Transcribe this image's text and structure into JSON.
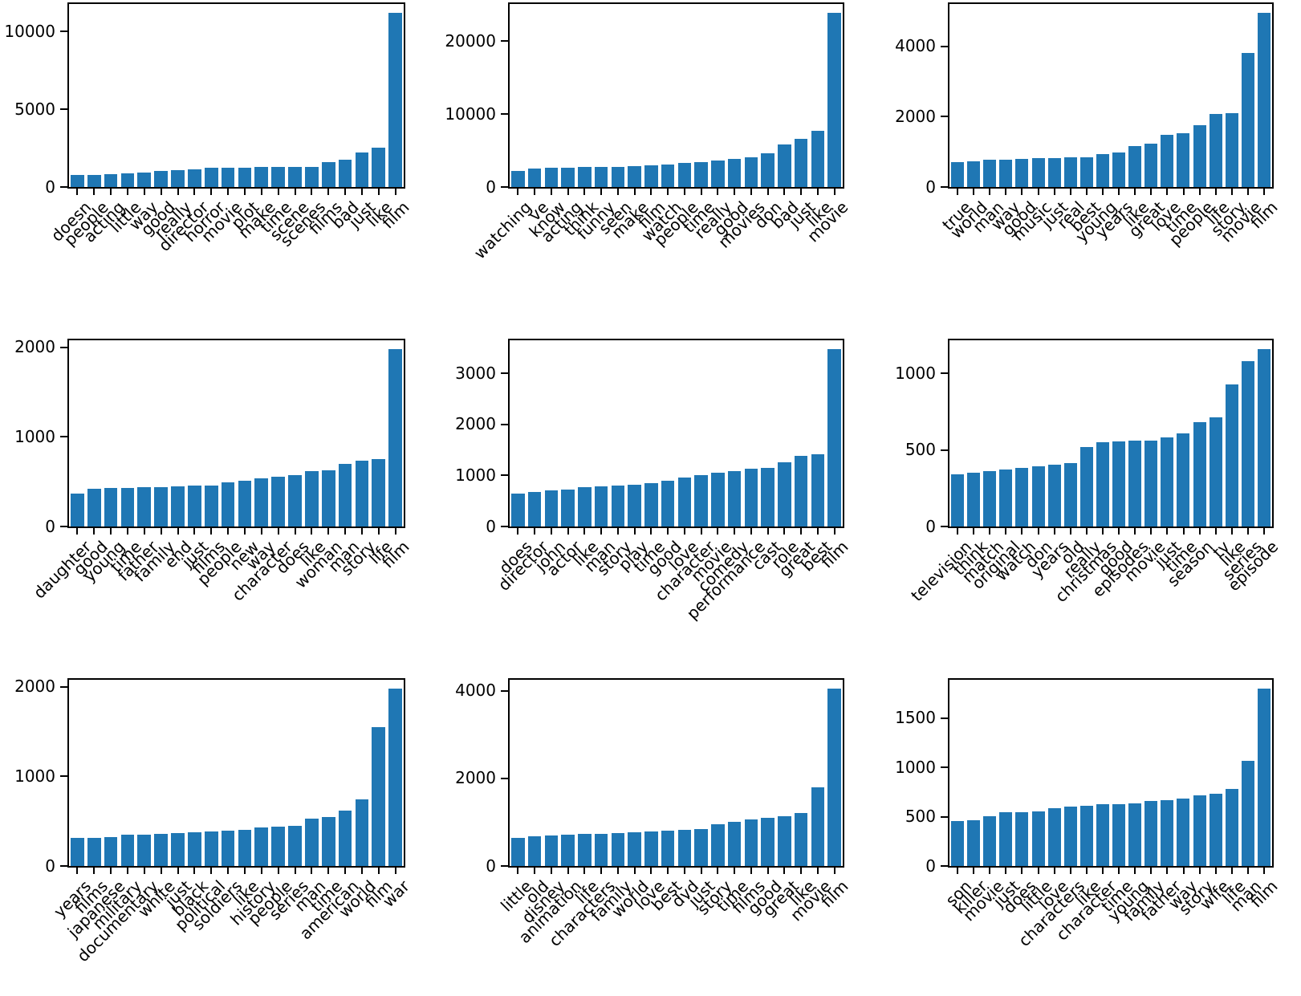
{
  "figure": {
    "background": "#ffffff",
    "bar_color": "#1f77b4",
    "spine_color": "#000000",
    "grid": {
      "rows": 3,
      "cols": 3
    }
  },
  "chart_data": [
    {
      "type": "bar",
      "position": "top-left",
      "title": "",
      "xlabel": "",
      "ylabel": "",
      "categories": [
        "doesn",
        "people",
        "acting",
        "little",
        "way",
        "good",
        "really",
        "director",
        "horror",
        "movie",
        "plot",
        "make",
        "time",
        "scene",
        "scenes",
        "films",
        "bad",
        "just",
        "like",
        "film"
      ],
      "values": [
        790,
        800,
        815,
        855,
        945,
        1040,
        1100,
        1160,
        1220,
        1240,
        1255,
        1265,
        1280,
        1295,
        1310,
        1600,
        1750,
        2200,
        2550,
        11200
      ],
      "yticks": [
        0,
        5000,
        10000
      ],
      "ylim": [
        0,
        11760
      ],
      "grid_lines": false
    },
    {
      "type": "bar",
      "position": "top-center",
      "title": "",
      "xlabel": "",
      "ylabel": "",
      "categories": [
        "watching",
        "ve",
        "know",
        "acting",
        "think",
        "funny",
        "seen",
        "make",
        "film",
        "watch",
        "people",
        "time",
        "really",
        "good",
        "movies",
        "don",
        "bad",
        "just",
        "like",
        "movie"
      ],
      "values": [
        2250,
        2550,
        2600,
        2650,
        2700,
        2720,
        2750,
        2820,
        2950,
        3100,
        3250,
        3450,
        3650,
        3850,
        4050,
        4650,
        5800,
        6650,
        7700,
        23900
      ],
      "yticks": [
        0,
        10000,
        20000
      ],
      "ylim": [
        0,
        25095
      ],
      "grid_lines": false
    },
    {
      "type": "bar",
      "position": "top-right",
      "title": "",
      "xlabel": "",
      "ylabel": "",
      "categories": [
        "true",
        "world",
        "man",
        "way",
        "good",
        "music",
        "just",
        "real",
        "best",
        "young",
        "years",
        "like",
        "great",
        "love",
        "time",
        "people",
        "life",
        "story",
        "movie",
        "film"
      ],
      "values": [
        710,
        740,
        765,
        780,
        795,
        810,
        820,
        835,
        850,
        930,
        975,
        1170,
        1225,
        1480,
        1530,
        1760,
        2080,
        2090,
        3800,
        4950
      ],
      "yticks": [
        0,
        2000,
        4000
      ],
      "ylim": [
        0,
        5198
      ],
      "grid_lines": false
    },
    {
      "type": "bar",
      "position": "middle-left",
      "title": "",
      "xlabel": "",
      "ylabel": "",
      "categories": [
        "daughter",
        "good",
        "young",
        "time",
        "father",
        "family",
        "end",
        "just",
        "films",
        "people",
        "new",
        "way",
        "character",
        "does",
        "like",
        "woman",
        "man",
        "story",
        "life",
        "film"
      ],
      "values": [
        370,
        420,
        428,
        432,
        436,
        442,
        448,
        453,
        460,
        490,
        515,
        540,
        557,
        575,
        615,
        627,
        700,
        732,
        752,
        1980
      ],
      "yticks": [
        0,
        1000,
        2000
      ],
      "ylim": [
        0,
        2079
      ],
      "grid_lines": false
    },
    {
      "type": "bar",
      "position": "middle-center",
      "title": "",
      "xlabel": "",
      "ylabel": "",
      "categories": [
        "does",
        "director",
        "john",
        "actor",
        "like",
        "man",
        "story",
        "play",
        "time",
        "good",
        "love",
        "character",
        "movie",
        "comedy",
        "performance",
        "cast",
        "role",
        "great",
        "best",
        "film"
      ],
      "values": [
        650,
        670,
        710,
        718,
        763,
        790,
        800,
        812,
        855,
        895,
        960,
        1000,
        1046,
        1088,
        1130,
        1148,
        1264,
        1385,
        1410,
        3470
      ],
      "yticks": [
        0,
        1000,
        2000,
        3000
      ],
      "ylim": [
        0,
        3644
      ],
      "grid_lines": false
    },
    {
      "type": "bar",
      "position": "middle-right",
      "title": "",
      "xlabel": "",
      "ylabel": "",
      "categories": [
        "television",
        "think",
        "match",
        "original",
        "watch",
        "don",
        "years",
        "old",
        "really",
        "christmas",
        "good",
        "episodes",
        "movie",
        "just",
        "time",
        "season",
        "tv",
        "like",
        "series",
        "episode"
      ],
      "values": [
        340,
        350,
        363,
        370,
        381,
        394,
        401,
        412,
        520,
        550,
        554,
        558,
        562,
        584,
        610,
        679,
        714,
        928,
        1078,
        1157
      ],
      "yticks": [
        0,
        500,
        1000
      ],
      "ylim": [
        0,
        1215
      ],
      "grid_lines": false
    },
    {
      "type": "bar",
      "position": "bottom-left",
      "title": "",
      "xlabel": "",
      "ylabel": "",
      "categories": [
        "years",
        "films",
        "japanese",
        "military",
        "documentary",
        "white",
        "just",
        "black",
        "political",
        "soldiers",
        "like",
        "history",
        "people",
        "series",
        "man",
        "time",
        "american",
        "world",
        "film",
        "war"
      ],
      "values": [
        315,
        318,
        323,
        348,
        353,
        358,
        368,
        375,
        382,
        390,
        405,
        427,
        435,
        452,
        527,
        545,
        615,
        740,
        1550,
        1980
      ],
      "yticks": [
        0,
        1000,
        2000
      ],
      "ylim": [
        0,
        2079
      ],
      "grid_lines": false
    },
    {
      "type": "bar",
      "position": "bottom-center",
      "title": "",
      "xlabel": "",
      "ylabel": "",
      "categories": [
        "little",
        "old",
        "disney",
        "animation",
        "life",
        "characters",
        "family",
        "world",
        "love",
        "best",
        "dvd",
        "just",
        "story",
        "time",
        "films",
        "good",
        "great",
        "like",
        "movie",
        "film"
      ],
      "values": [
        650,
        680,
        700,
        710,
        725,
        740,
        750,
        762,
        790,
        810,
        822,
        835,
        960,
        1015,
        1070,
        1100,
        1130,
        1210,
        1800,
        4050
      ],
      "yticks": [
        0,
        2000,
        4000
      ],
      "ylim": [
        0,
        4253
      ],
      "grid_lines": false
    },
    {
      "type": "bar",
      "position": "bottom-right",
      "title": "",
      "xlabel": "",
      "ylabel": "",
      "categories": [
        "son",
        "killer",
        "movie",
        "just",
        "does",
        "little",
        "love",
        "characters",
        "like",
        "character",
        "time",
        "young",
        "family",
        "father",
        "way",
        "story",
        "wife",
        "life",
        "man",
        "film"
      ],
      "values": [
        455,
        465,
        505,
        545,
        550,
        556,
        585,
        606,
        613,
        624,
        630,
        637,
        662,
        671,
        683,
        715,
        737,
        780,
        1065,
        1800
      ],
      "yticks": [
        0,
        500,
        1000,
        1500
      ],
      "ylim": [
        0,
        1890
      ],
      "grid_lines": false
    }
  ]
}
